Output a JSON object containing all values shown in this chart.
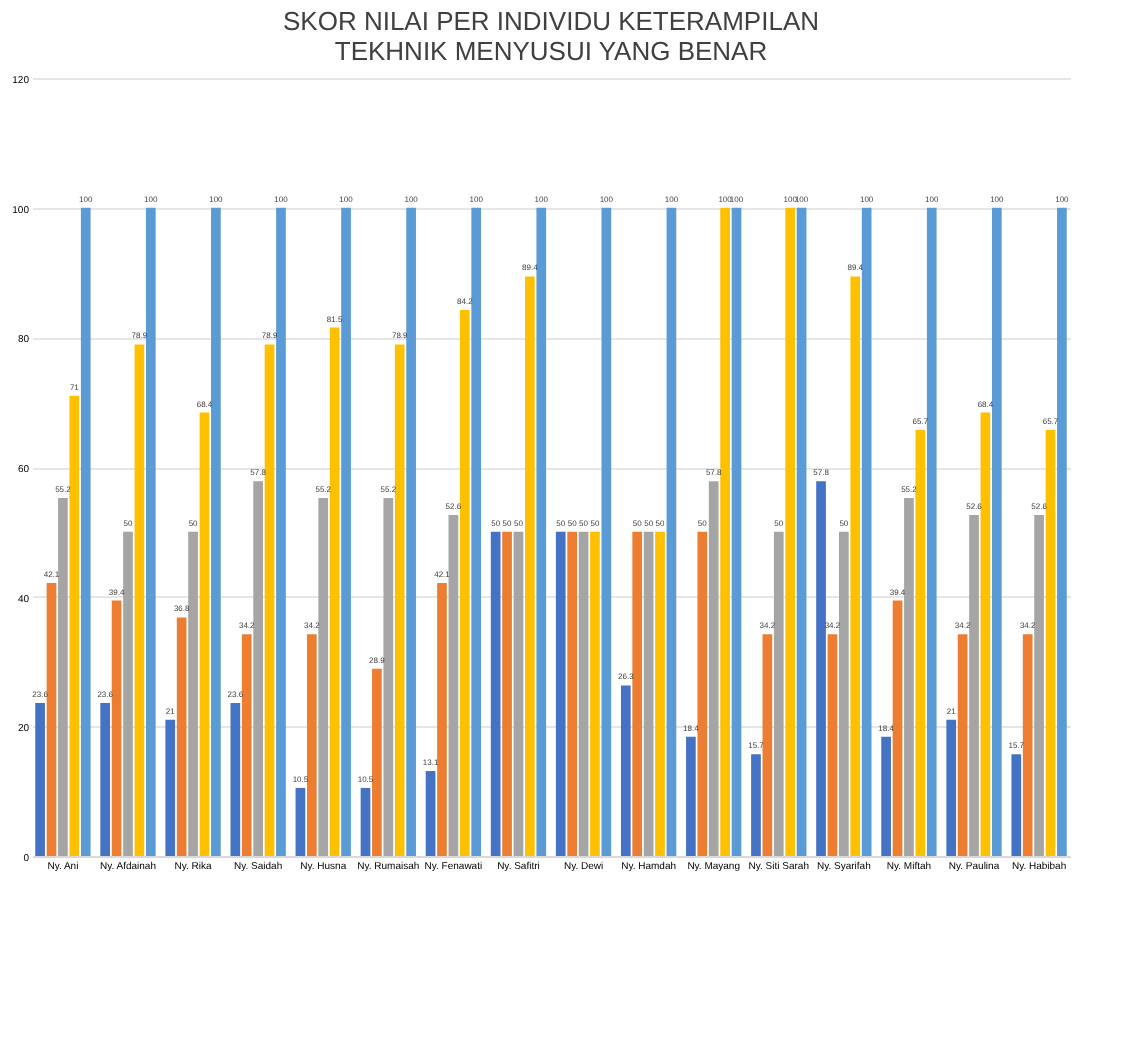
{
  "chart_data": {
    "type": "bar",
    "title": "SKOR NILAI PER INDIVIDU KETERAMPILAN\nTEKHNIK MENYUSUI YANG BENAR",
    "categories": [
      "Ny. Ani",
      "Ny. Afdainah",
      "Ny. Rika",
      "Ny. Saidah",
      "Ny. Husna",
      "Ny. Rumaisah",
      "Ny. Fenawati",
      "Ny. Safitri",
      "Ny. Dewi",
      "Ny. Hamdah",
      "Ny. Mayang",
      "Ny. Siti Sarah",
      "Ny. Syarifah",
      "Ny. Miftah",
      "Ny. Paulina",
      "Ny. Habibah"
    ],
    "series": [
      {
        "color": "#4472c4",
        "values": [
          23.6,
          23.6,
          21,
          23.6,
          10.5,
          10.5,
          13.1,
          50,
          50,
          26.3,
          18.4,
          15.7,
          57.8,
          18.4,
          21,
          15.7
        ]
      },
      {
        "color": "#ed7d31",
        "values": [
          42.1,
          39.4,
          36.8,
          34.2,
          34.2,
          28.9,
          42.1,
          50,
          50,
          50,
          50,
          34.2,
          34.2,
          39.4,
          34.2,
          34.2
        ]
      },
      {
        "color": "#a5a5a5",
        "values": [
          55.2,
          50,
          50,
          57.8,
          55.2,
          55.2,
          52.6,
          50,
          50,
          50,
          57.8,
          50,
          50,
          55.2,
          52.6,
          52.6
        ]
      },
      {
        "color": "#ffc000",
        "values": [
          71,
          78.9,
          68.4,
          78.9,
          81.5,
          78.9,
          84.2,
          89.4,
          50,
          50,
          100,
          100,
          89.4,
          65.7,
          68.4,
          65.7
        ]
      },
      {
        "color": "#5b9bd5",
        "values": [
          100,
          100,
          100,
          100,
          100,
          100,
          100,
          100,
          100,
          100,
          100,
          100,
          100,
          100,
          100,
          100
        ]
      }
    ],
    "ylim": [
      0,
      120
    ],
    "yticks": [
      0,
      20,
      40,
      60,
      80,
      100,
      120
    ],
    "grid": "y",
    "data_labels": true
  }
}
